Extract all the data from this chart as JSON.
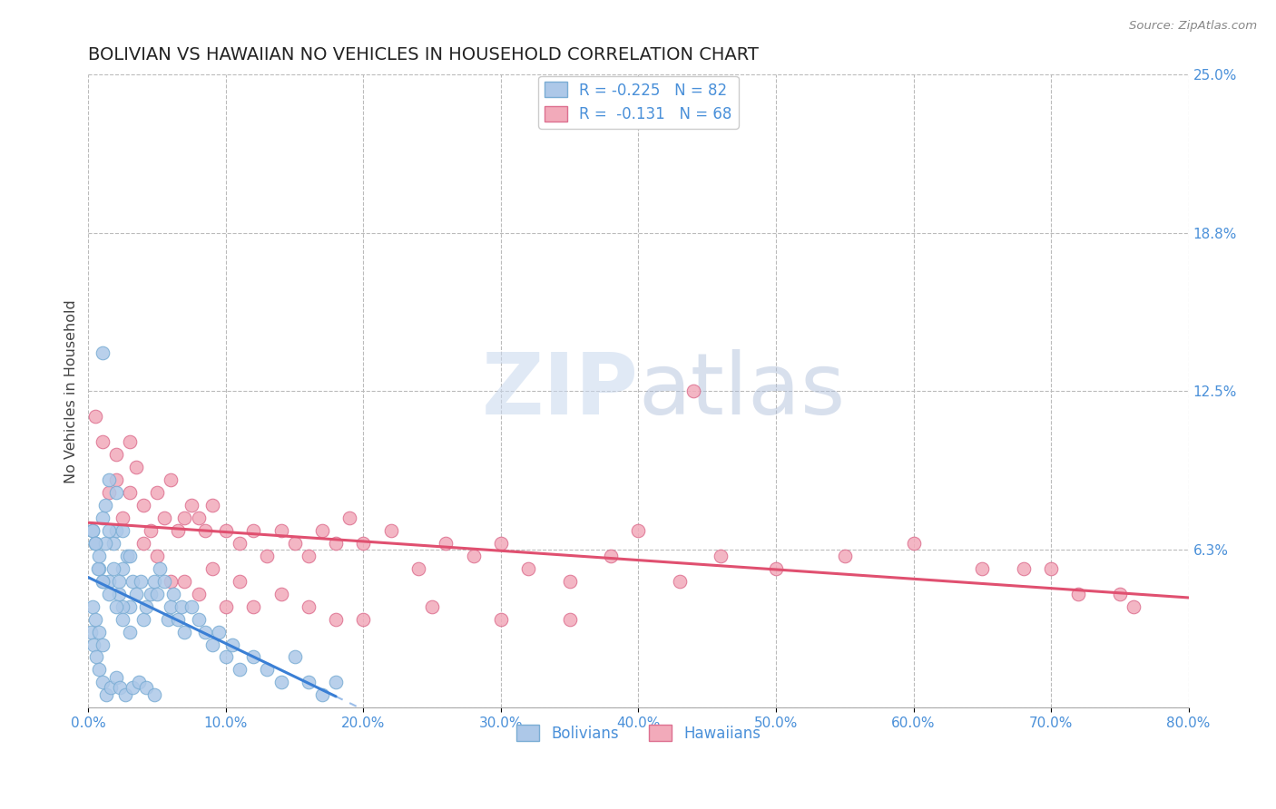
{
  "title": "BOLIVIAN VS HAWAIIAN NO VEHICLES IN HOUSEHOLD CORRELATION CHART",
  "source": "Source: ZipAtlas.com",
  "ylabel": "No Vehicles in Household",
  "xlim": [
    0.0,
    80.0
  ],
  "ylim": [
    0.0,
    25.0
  ],
  "xticks": [
    0.0,
    10.0,
    20.0,
    30.0,
    40.0,
    50.0,
    60.0,
    70.0,
    80.0
  ],
  "yticks": [
    0.0,
    6.25,
    12.5,
    18.75,
    25.0
  ],
  "ytick_labels": [
    "",
    "6.3%",
    "12.5%",
    "18.8%",
    "25.0%"
  ],
  "xtick_labels": [
    "0.0%",
    "10.0%",
    "20.0%",
    "30.0%",
    "40.0%",
    "50.0%",
    "60.0%",
    "70.0%",
    "80.0%"
  ],
  "bolivians_color": "#adc8e8",
  "hawaiians_color": "#f2aaba",
  "bolivians_edge_color": "#7aadd4",
  "hawaiians_edge_color": "#dd7090",
  "trend_bolivians_color": "#3a7fd5",
  "trend_hawaiians_color": "#e05070",
  "watermark_ZIP": "ZIP",
  "watermark_atlas": "atlas",
  "legend_label1": "R = -0.225   N = 82",
  "legend_label2": "R =  -0.131   N = 68",
  "bolivians_legend_label": "Bolivians",
  "hawaiians_legend_label": "Hawaiians",
  "background_color": "#ffffff",
  "grid_color": "#bbbbbb",
  "title_color": "#222222",
  "axis_label_color": "#444444",
  "tick_color": "#4a90d9",
  "legend_text_color": "#4a90d9",
  "bolivians_x": [
    0.3,
    0.5,
    0.8,
    1.0,
    1.2,
    1.5,
    1.8,
    2.0,
    2.2,
    2.5,
    2.8,
    3.0,
    3.2,
    3.5,
    3.8,
    4.0,
    4.2,
    4.5,
    4.8,
    5.0,
    5.2,
    5.5,
    5.8,
    6.0,
    6.2,
    6.5,
    6.8,
    7.0,
    7.5,
    8.0,
    8.5,
    9.0,
    9.5,
    10.0,
    10.5,
    11.0,
    12.0,
    13.0,
    14.0,
    15.0,
    16.0,
    17.0,
    18.0,
    0.2,
    0.4,
    0.6,
    0.8,
    1.0,
    1.3,
    1.6,
    2.0,
    2.3,
    2.7,
    3.2,
    3.7,
    4.2,
    4.8,
    0.3,
    0.5,
    0.7,
    1.0,
    1.2,
    1.5,
    1.8,
    2.2,
    2.5,
    1.0,
    1.5,
    2.0,
    2.5,
    3.0,
    0.5,
    0.8,
    1.0,
    1.5,
    2.0,
    2.5,
    3.0,
    0.3,
    0.5,
    0.8,
    1.0
  ],
  "bolivians_y": [
    7.0,
    6.5,
    5.5,
    7.5,
    8.0,
    5.0,
    6.5,
    7.0,
    4.5,
    5.5,
    6.0,
    4.0,
    5.0,
    4.5,
    5.0,
    3.5,
    4.0,
    4.5,
    5.0,
    4.5,
    5.5,
    5.0,
    3.5,
    4.0,
    4.5,
    3.5,
    4.0,
    3.0,
    4.0,
    3.5,
    3.0,
    2.5,
    3.0,
    2.0,
    2.5,
    1.5,
    2.0,
    1.5,
    1.0,
    2.0,
    1.0,
    0.5,
    1.0,
    3.0,
    2.5,
    2.0,
    1.5,
    1.0,
    0.5,
    0.8,
    1.2,
    0.8,
    0.5,
    0.8,
    1.0,
    0.8,
    0.5,
    7.0,
    6.5,
    5.5,
    5.0,
    6.5,
    7.0,
    5.5,
    5.0,
    4.0,
    14.0,
    9.0,
    8.5,
    7.0,
    6.0,
    6.5,
    6.0,
    5.0,
    4.5,
    4.0,
    3.5,
    3.0,
    4.0,
    3.5,
    3.0,
    2.5
  ],
  "hawaiians_x": [
    0.5,
    1.0,
    1.5,
    2.0,
    2.5,
    3.0,
    3.5,
    4.0,
    4.5,
    5.0,
    5.5,
    6.0,
    6.5,
    7.0,
    7.5,
    8.0,
    8.5,
    9.0,
    10.0,
    11.0,
    12.0,
    13.0,
    14.0,
    15.0,
    16.0,
    17.0,
    18.0,
    19.0,
    20.0,
    22.0,
    24.0,
    26.0,
    28.0,
    30.0,
    32.0,
    35.0,
    38.0,
    40.0,
    43.0,
    46.0,
    50.0,
    55.0,
    60.0,
    65.0,
    68.0,
    70.0,
    72.0,
    75.0,
    76.0,
    2.0,
    3.0,
    4.0,
    5.0,
    6.0,
    7.0,
    8.0,
    9.0,
    10.0,
    11.0,
    12.0,
    14.0,
    16.0,
    18.0,
    20.0,
    25.0,
    30.0,
    35.0,
    44.0
  ],
  "hawaiians_y": [
    11.5,
    10.5,
    8.5,
    9.0,
    7.5,
    8.5,
    9.5,
    8.0,
    7.0,
    8.5,
    7.5,
    9.0,
    7.0,
    7.5,
    8.0,
    7.5,
    7.0,
    8.0,
    7.0,
    6.5,
    7.0,
    6.0,
    7.0,
    6.5,
    6.0,
    7.0,
    6.5,
    7.5,
    6.5,
    7.0,
    5.5,
    6.5,
    6.0,
    6.5,
    5.5,
    5.0,
    6.0,
    7.0,
    5.0,
    6.0,
    5.5,
    6.0,
    6.5,
    5.5,
    5.5,
    5.5,
    4.5,
    4.5,
    4.0,
    10.0,
    10.5,
    6.5,
    6.0,
    5.0,
    5.0,
    4.5,
    5.5,
    4.0,
    5.0,
    4.0,
    4.5,
    4.0,
    3.5,
    3.5,
    4.0,
    3.5,
    3.5,
    12.5
  ]
}
